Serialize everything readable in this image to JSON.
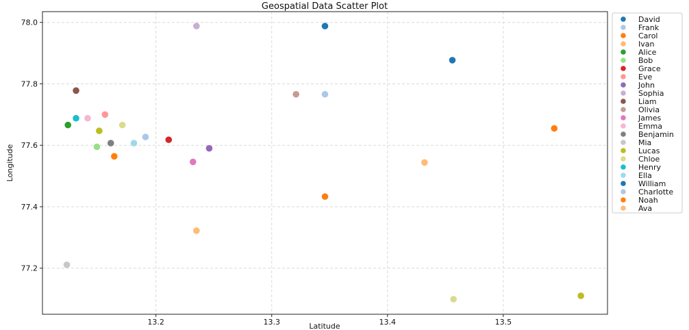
{
  "chart_data": {
    "type": "scatter",
    "title": "Geospatial Data Scatter Plot",
    "xlabel": "Latitude",
    "ylabel": "Longitude",
    "xlim": [
      13.102,
      13.59
    ],
    "ylim": [
      77.05,
      78.035
    ],
    "xticks": [
      "13.2",
      "13.3",
      "13.4",
      "13.5"
    ],
    "xtick_values": [
      13.2,
      13.3,
      13.4,
      13.5
    ],
    "yticks": [
      "77.2",
      "77.4",
      "77.6",
      "77.8",
      "78.0"
    ],
    "ytick_values": [
      77.2,
      77.4,
      77.6,
      77.8,
      78.0
    ],
    "grid": true,
    "legend_position": "right",
    "series": [
      {
        "name": "David",
        "color": "#1f77b4",
        "x": 13.456,
        "y": 77.877
      },
      {
        "name": "Frank",
        "color": "#aec7e8",
        "x": 13.346,
        "y": 77.766
      },
      {
        "name": "Carol",
        "color": "#ff7f0e",
        "x": 13.544,
        "y": 77.655
      },
      {
        "name": "Ivan",
        "color": "#ffbb78",
        "x": 13.235,
        "y": 77.322
      },
      {
        "name": "Alice",
        "color": "#2ca02c",
        "x": 13.124,
        "y": 77.666
      },
      {
        "name": "Bob",
        "color": "#98df8a",
        "x": 13.149,
        "y": 77.595
      },
      {
        "name": "Grace",
        "color": "#d62728",
        "x": 13.211,
        "y": 77.618
      },
      {
        "name": "Eve",
        "color": "#ff9896",
        "x": 13.156,
        "y": 77.7
      },
      {
        "name": "John",
        "color": "#9467bd",
        "x": 13.246,
        "y": 77.59
      },
      {
        "name": "Sophia",
        "color": "#c5b0d5",
        "x": 13.235,
        "y": 77.988
      },
      {
        "name": "Liam",
        "color": "#8c564b",
        "x": 13.131,
        "y": 77.778
      },
      {
        "name": "Olivia",
        "color": "#c49c94",
        "x": 13.321,
        "y": 77.766
      },
      {
        "name": "James",
        "color": "#e377c2",
        "x": 13.232,
        "y": 77.546
      },
      {
        "name": "Emma",
        "color": "#f7b6d2",
        "x": 13.141,
        "y": 77.688
      },
      {
        "name": "Benjamin",
        "color": "#7f7f7f",
        "x": 13.161,
        "y": 77.607
      },
      {
        "name": "Mia",
        "color": "#c7c7c7",
        "x": 13.123,
        "y": 77.211
      },
      {
        "name": "Lucas",
        "color": "#bcbd22",
        "x": 13.567,
        "y": 77.11
      },
      {
        "name": "Chloe",
        "color": "#dbdb8d",
        "x": 13.457,
        "y": 77.099
      },
      {
        "name": "Henry",
        "color": "#17becf",
        "x": 13.131,
        "y": 77.688
      },
      {
        "name": "Ella",
        "color": "#9edae5",
        "x": 13.181,
        "y": 77.607
      },
      {
        "name": "William",
        "color": "#1f77b4",
        "x": 13.346,
        "y": 77.988
      },
      {
        "name": "Charlotte",
        "color": "#aec7e8",
        "x": 13.191,
        "y": 77.627
      },
      {
        "name": "Noah",
        "color": "#ff7f0e",
        "x": 13.346,
        "y": 77.433
      },
      {
        "name": "Ava",
        "color": "#ffbb78",
        "x": 13.432,
        "y": 77.544
      }
    ],
    "extra_points": [
      {
        "color": "#ff7f0e",
        "x": 13.164,
        "y": 77.564
      },
      {
        "color": "#bcbd22",
        "x": 13.151,
        "y": 77.647
      },
      {
        "color": "#dbdb8d",
        "x": 13.171,
        "y": 77.666
      }
    ]
  }
}
